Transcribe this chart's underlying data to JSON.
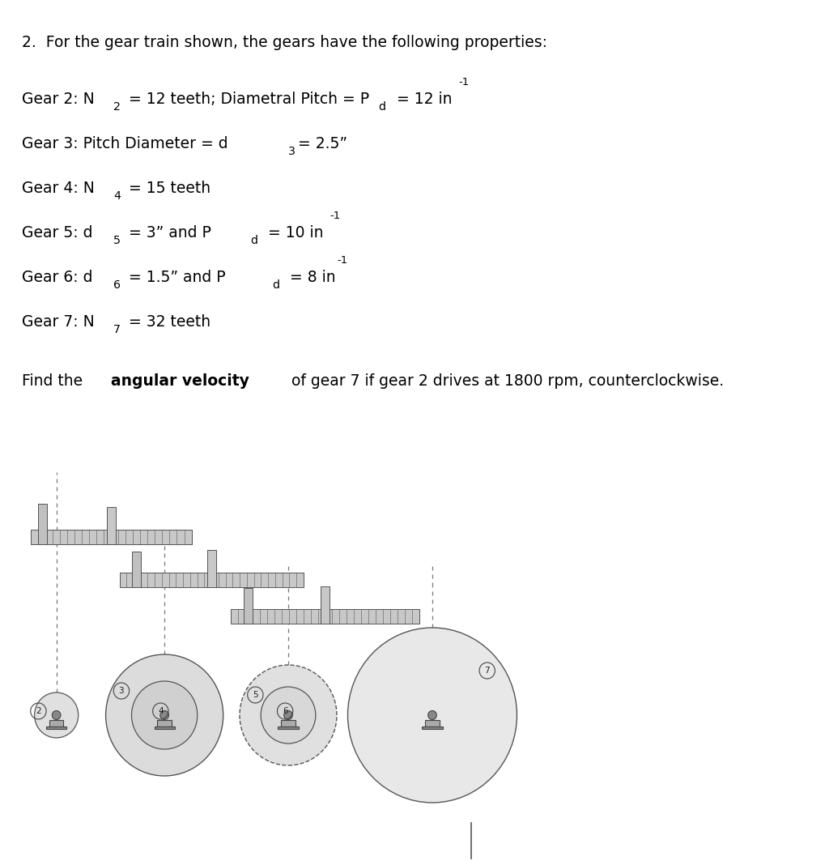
{
  "title_line": "2.  For the gear train shown, the gears have the following properties:",
  "gear_lines": [
    {
      "label": "Gear 2: N",
      "sub": "2",
      "rest": " = 12 teeth; Diametral Pitch = P",
      "sub2": "d",
      "rest2": " = 12 in",
      "sup": "-1"
    },
    {
      "label": "Gear 3: Pitch Diameter = d",
      "sub": "3",
      "rest": "= 2.5”"
    },
    {
      "label": "Gear 4: N",
      "sub": "4",
      "rest": " = 15 teeth"
    },
    {
      "label": "Gear 5: d",
      "sub": "5",
      "rest": " = 3” and P",
      "sub2": "d",
      "rest2": " = 10 in",
      "sup": "-1"
    },
    {
      "label": "Gear 6: d",
      "sub": "6",
      "rest": " = 1.5” and P",
      "sub2": "d",
      "rest2": " = 8 in",
      "sup": "-1"
    },
    {
      "label": "Gear 7: N",
      "sub": "7",
      "rest": " = 32 teeth"
    }
  ],
  "find_line_plain": "Find the ",
  "find_line_bold": "angular velocity",
  "find_line_rest": " of gear 7 if gear 2 drives at 1800 rpm, counterclockwise.",
  "bg_color": "#ffffff",
  "text_color": "#000000",
  "gear_color": "#b0b0b0",
  "gear_border_color": "#555555"
}
